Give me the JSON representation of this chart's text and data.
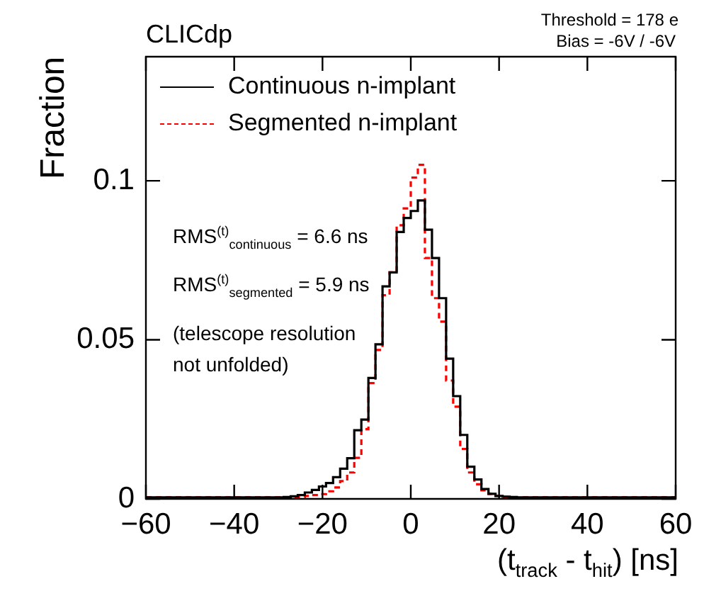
{
  "chart_data": {
    "type": "histogram",
    "xlabel": "(t$_{track}$ - t$_{hit}$) [ns]",
    "ylabel": "Fraction",
    "annotations": [
      "CLICdp",
      "Threshold = 178 e",
      "Bias = -6V / -6V",
      "RMS$^{(t)}$$_{continuous}$ = 6.6 ns",
      "RMS$^{(t)}$$_{segmented}$ = 5.9 ns",
      "(telescope resolution not unfolded)"
    ],
    "xlim": [
      -60,
      60
    ],
    "ylim": [
      0,
      0.139
    ],
    "xticks": [
      -60,
      -40,
      -20,
      0,
      20,
      40,
      60
    ],
    "yticks": [
      0,
      0.05,
      0.1
    ],
    "legend": "top left",
    "bins": [
      -60,
      -28.8,
      -27.2,
      -25.6,
      -24,
      -22.4,
      -20.8,
      -19.2,
      -17.6,
      -16,
      -14.4,
      -12.8,
      -11.2,
      -9.6,
      -8,
      -6.4,
      -4.8,
      -3.2,
      -1.6,
      0,
      1.6,
      3.2,
      4.8,
      6.4,
      8,
      9.6,
      11.2,
      12.8,
      14.4,
      16,
      17.6,
      19.2,
      20.8,
      22.4,
      24,
      25.6,
      27.2,
      28.8,
      60
    ],
    "series": [
      {
        "name": "Continuous n-implant",
        "color": "#000000",
        "line_style": "solid",
        "values": [
          0.0005,
          0.0006,
          0.0008,
          0.0012,
          0.002,
          0.0028,
          0.0039,
          0.005,
          0.0068,
          0.0095,
          0.0128,
          0.0216,
          0.0249,
          0.038,
          0.0486,
          0.0668,
          0.0712,
          0.0839,
          0.0883,
          0.0905,
          0.0938,
          0.0846,
          0.0757,
          0.0631,
          0.0441,
          0.0323,
          0.0201,
          0.0101,
          0.0061,
          0.0031,
          0.0016,
          0.0009,
          0.0007,
          0.0006,
          0.0005,
          0.0005,
          0.0005,
          0.0005
        ]
      },
      {
        "name": "Segmented n-implant",
        "color": "#ff0000",
        "line_style": "dashed",
        "values": [
          0.0005,
          0.0005,
          0.0005,
          0.0006,
          0.0009,
          0.0012,
          0.0015,
          0.0024,
          0.0036,
          0.0056,
          0.0083,
          0.0129,
          0.0219,
          0.0364,
          0.0468,
          0.064,
          0.0712,
          0.086,
          0.0913,
          0.101,
          0.105,
          0.0757,
          0.0631,
          0.0557,
          0.0372,
          0.029,
          0.0157,
          0.0083,
          0.0046,
          0.0027,
          0.0016,
          0.0009,
          0.0006,
          0.0005,
          0.0005,
          0.0005,
          0.0005,
          0.0005
        ]
      }
    ]
  }
}
